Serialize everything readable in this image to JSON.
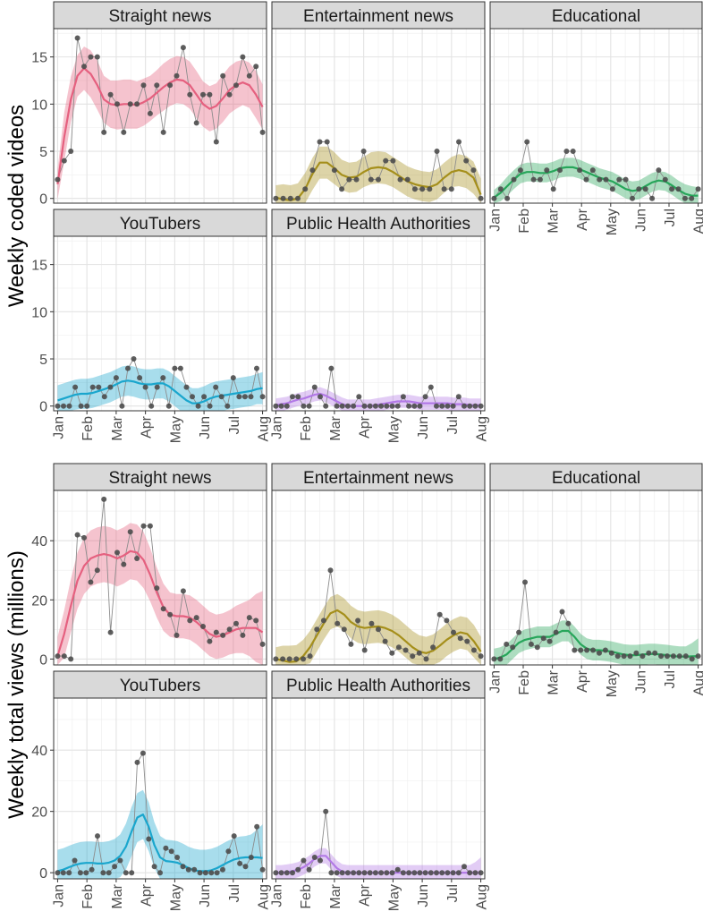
{
  "colors": {
    "Straight news": "#e5607f",
    "Entertainment news": "#a58f1b",
    "Educational": "#27a65a",
    "YouTubers": "#1aa6cd",
    "Public Health Authorities": "#b279e6"
  },
  "chart_data": [
    {
      "type": "line",
      "title": "",
      "ylabel": "Weekly coded videos",
      "xlabel": "",
      "ylim": [
        -0.5,
        18
      ],
      "yticks": [
        0,
        5,
        10,
        15
      ],
      "xtick_labels": [
        "Jan",
        "Feb",
        "Mar",
        "Apr",
        "May",
        "Jun",
        "Jul",
        "Aug"
      ],
      "x_unit": "week index (0 = first week of Jan, 31 = Aug)",
      "xlim": [
        -0.6,
        31.6
      ],
      "series": [
        {
          "name": "Straight news",
          "values": [
            2,
            4,
            5,
            17,
            14,
            15,
            15,
            7,
            11,
            10,
            7,
            10,
            10,
            12,
            9,
            12,
            7,
            12,
            13,
            16,
            11,
            8,
            11,
            11,
            6,
            13,
            11,
            12,
            15,
            13,
            14,
            7
          ],
          "smooth": [
            1.5,
            6.5,
            10.5,
            13.0,
            13.8,
            13.2,
            12.0,
            10.5,
            10.0,
            9.9,
            10.0,
            10.0,
            9.9,
            10.2,
            10.6,
            11.2,
            11.8,
            12.3,
            12.6,
            12.5,
            12.0,
            11.0,
            10.0,
            9.5,
            9.8,
            10.6,
            11.5,
            12.0,
            12.3,
            12.0,
            11.0,
            9.7
          ],
          "band": [
            1.6,
            2.6,
            2.4,
            2.2,
            2.3,
            2.5,
            2.6,
            2.5,
            2.5,
            2.6,
            2.6,
            2.6,
            2.5,
            2.5,
            2.4,
            2.4,
            2.5,
            2.5,
            2.5,
            2.5,
            2.5,
            2.5,
            2.4,
            2.4,
            2.4,
            2.5,
            2.5,
            2.5,
            2.4,
            2.4,
            2.5,
            2.4
          ]
        },
        {
          "name": "Entertainment news",
          "values": [
            0,
            0,
            0,
            0,
            1,
            3,
            6,
            6,
            3,
            1,
            2,
            2,
            5,
            2,
            2,
            4,
            4,
            2,
            2,
            1,
            1,
            1,
            5,
            1,
            1,
            6,
            4,
            3,
            0
          ],
          "smooth": [
            0.1,
            -0.1,
            -0.2,
            0.0,
            1.0,
            2.6,
            3.8,
            3.8,
            3.2,
            2.5,
            2.2,
            2.3,
            2.8,
            3.2,
            3.3,
            3.2,
            2.8,
            2.3,
            1.8,
            1.5,
            1.3,
            1.2,
            1.5,
            2.2,
            2.8,
            3.0,
            2.8,
            2.2,
            0.4
          ],
          "band": [
            1.3,
            1.6,
            1.6,
            1.6,
            1.7,
            1.7,
            1.7,
            1.7,
            1.7,
            1.6,
            1.6,
            1.6,
            1.6,
            1.7,
            1.7,
            1.7,
            1.6,
            1.6,
            1.6,
            1.6,
            1.6,
            1.6,
            1.6,
            1.6,
            1.6,
            1.7,
            1.7,
            1.7,
            1.7
          ]
        },
        {
          "name": "Educational",
          "values": [
            0,
            1,
            0,
            2,
            3,
            6,
            2,
            2,
            3,
            1,
            3,
            5,
            5,
            3,
            2,
            3,
            2,
            2,
            1,
            2,
            2,
            0,
            1,
            1,
            0,
            3,
            2,
            1,
            1,
            0,
            0,
            1
          ],
          "smooth": [
            0.1,
            0.6,
            1.3,
            2.0,
            2.6,
            2.8,
            2.8,
            2.7,
            2.7,
            2.9,
            3.2,
            3.3,
            3.3,
            3.1,
            2.8,
            2.5,
            2.2,
            2.0,
            1.8,
            1.4,
            1.0,
            0.8,
            0.9,
            1.3,
            1.7,
            1.9,
            1.8,
            1.4,
            0.9,
            0.5,
            0.3,
            0.3
          ],
          "band": [
            0.8,
            0.9,
            1.0,
            1.0,
            1.0,
            1.0,
            1.0,
            1.0,
            1.0,
            1.0,
            1.0,
            1.0,
            1.0,
            1.0,
            1.0,
            1.0,
            1.0,
            1.0,
            1.0,
            1.0,
            1.0,
            1.0,
            1.0,
            1.0,
            1.0,
            1.0,
            1.0,
            1.0,
            1.0,
            1.0,
            1.0,
            0.9
          ]
        },
        {
          "name": "YouTubers",
          "values": [
            0,
            0,
            0,
            2,
            0,
            0,
            2,
            2,
            1,
            2,
            3,
            0,
            4,
            5,
            3,
            2,
            0,
            2,
            3,
            0,
            4,
            4,
            2,
            1,
            0,
            1,
            0,
            2,
            1,
            0,
            3,
            1,
            1,
            1,
            4,
            1
          ],
          "smooth": [
            0.6,
            0.8,
            1.0,
            1.2,
            1.3,
            1.3,
            1.4,
            1.6,
            1.8,
            2.0,
            2.3,
            2.6,
            2.7,
            2.6,
            2.4,
            2.3,
            2.3,
            2.4,
            2.4,
            2.1,
            1.6,
            1.1,
            0.6,
            0.3,
            0.3,
            0.5,
            0.8,
            1.0,
            1.1,
            1.2,
            1.3,
            1.4,
            1.5,
            1.6,
            1.8,
            1.9
          ],
          "band": [
            1.6,
            1.6,
            1.6,
            1.6,
            1.6,
            1.6,
            1.6,
            1.6,
            1.6,
            1.6,
            1.6,
            1.6,
            1.6,
            1.6,
            1.6,
            1.6,
            1.6,
            1.6,
            1.6,
            1.6,
            1.6,
            1.6,
            1.6,
            1.6,
            1.6,
            1.6,
            1.6,
            1.6,
            1.6,
            1.6,
            1.6,
            1.6,
            1.6,
            1.6,
            1.6,
            1.7
          ]
        },
        {
          "name": "Public Health Authorities",
          "values": [
            0,
            0,
            0,
            1,
            1,
            0,
            0,
            2,
            1,
            0,
            4,
            0,
            0,
            0,
            0,
            1,
            0,
            0,
            0,
            0,
            0,
            0,
            0,
            1,
            0,
            0,
            0,
            1,
            2,
            0,
            0,
            0,
            0,
            1,
            0,
            0,
            0,
            0
          ],
          "smooth": [
            0.1,
            0.2,
            0.3,
            0.5,
            0.7,
            0.8,
            1.0,
            1.2,
            1.3,
            1.1,
            0.8,
            0.5,
            0.2,
            0.0,
            0.0,
            0.0,
            0.0,
            0.0,
            0.1,
            0.2,
            0.3,
            0.4,
            0.5,
            0.5,
            0.5,
            0.4,
            0.3,
            0.3,
            0.3,
            0.3,
            0.3,
            0.3,
            0.2,
            0.2,
            0.2,
            0.1,
            0.1,
            0.1
          ],
          "band": [
            0.7,
            0.7,
            0.7,
            0.7,
            0.7,
            0.7,
            0.7,
            0.7,
            0.7,
            0.7,
            0.7,
            0.7,
            0.7,
            0.7,
            0.7,
            0.7,
            0.7,
            0.7,
            0.7,
            0.7,
            0.7,
            0.7,
            0.7,
            0.7,
            0.7,
            0.7,
            0.7,
            0.7,
            0.7,
            0.7,
            0.7,
            0.7,
            0.7,
            0.7,
            0.7,
            0.7,
            0.7,
            0.7
          ]
        }
      ]
    },
    {
      "type": "line",
      "title": "",
      "ylabel": "Weekly total views (millions)",
      "xlabel": "",
      "ylim": [
        -2,
        57
      ],
      "yticks": [
        0,
        20,
        40
      ],
      "xtick_labels": [
        "Jan",
        "Feb",
        "Mar",
        "Apr",
        "May",
        "Jun",
        "Jul",
        "Aug"
      ],
      "x_unit": "week index (0 = first week of Jan, 31 = Aug)",
      "xlim": [
        -0.6,
        31.6
      ],
      "series": [
        {
          "name": "Straight news",
          "values": [
            1,
            1,
            0,
            42,
            41,
            26,
            30,
            54,
            9,
            36,
            32,
            43,
            34,
            45,
            45,
            24,
            17,
            15,
            8,
            23,
            13,
            14,
            11,
            6,
            9,
            8,
            10,
            12,
            8,
            14,
            13,
            5
          ],
          "smooth": [
            1.0,
            8.5,
            18.0,
            26.5,
            31.5,
            34.0,
            35.0,
            35.5,
            35.0,
            34.0,
            35.0,
            36.5,
            36.0,
            33.5,
            28.5,
            22.5,
            17.5,
            15.0,
            14.5,
            14.5,
            14.0,
            12.5,
            10.5,
            8.5,
            7.5,
            8.0,
            9.0,
            10.0,
            10.5,
            10.5,
            10.5,
            9.0
          ],
          "band": [
            6.5,
            8.0,
            9.0,
            9.5,
            9.5,
            9.5,
            9.5,
            9.5,
            9.5,
            9.5,
            9.5,
            9.5,
            9.5,
            9.5,
            9.0,
            8.5,
            8.0,
            7.5,
            7.5,
            7.5,
            7.5,
            7.5,
            7.5,
            7.5,
            7.5,
            7.5,
            7.5,
            8.0,
            8.5,
            9.5,
            11.5,
            14.0
          ]
        },
        {
          "name": "Entertainment news",
          "values": [
            0,
            0,
            0,
            0,
            0,
            1,
            10,
            13,
            30,
            12,
            10,
            5,
            13,
            3,
            12,
            10,
            6,
            2,
            4,
            3,
            1,
            2,
            0,
            4,
            15,
            13,
            9,
            7,
            6,
            3,
            1
          ],
          "smooth": [
            0.0,
            -0.5,
            -1.0,
            -0.8,
            1.0,
            4.0,
            8.0,
            12.0,
            15.5,
            16.5,
            15.0,
            12.5,
            11.0,
            10.5,
            10.8,
            11.0,
            10.5,
            9.5,
            8.0,
            6.0,
            4.0,
            2.5,
            2.0,
            2.8,
            4.5,
            6.5,
            8.0,
            9.0,
            8.5,
            6.0,
            2.5
          ],
          "band": [
            4.0,
            5.0,
            5.5,
            5.5,
            5.5,
            5.5,
            5.5,
            5.5,
            5.5,
            5.5,
            5.5,
            5.5,
            5.5,
            5.5,
            5.5,
            5.5,
            5.5,
            5.5,
            5.5,
            5.5,
            5.5,
            5.5,
            5.5,
            5.5,
            5.5,
            5.5,
            5.5,
            5.5,
            5.5,
            5.5,
            5.0
          ]
        },
        {
          "name": "Educational",
          "values": [
            0,
            0,
            5,
            4,
            9,
            26,
            5,
            4,
            7,
            6,
            9,
            16,
            12,
            3,
            3,
            3,
            3,
            2,
            3,
            2,
            1,
            1,
            1,
            2,
            1,
            2,
            2,
            1,
            1,
            1,
            1,
            1,
            0,
            1
          ],
          "smooth": [
            0.0,
            0.5,
            1.5,
            3.5,
            5.5,
            6.5,
            7.0,
            7.5,
            7.5,
            7.5,
            8.5,
            9.5,
            9.5,
            7.5,
            5.0,
            3.5,
            3.0,
            3.0,
            2.8,
            2.5,
            2.0,
            1.5,
            1.3,
            1.3,
            1.5,
            1.7,
            1.7,
            1.5,
            1.3,
            1.0,
            0.8,
            0.8,
            0.9,
            1.0
          ],
          "band": [
            3.5,
            3.5,
            3.5,
            3.5,
            3.5,
            3.5,
            3.5,
            3.5,
            3.5,
            3.5,
            3.5,
            3.5,
            3.5,
            3.5,
            3.5,
            3.5,
            3.5,
            3.5,
            3.5,
            3.5,
            3.5,
            3.5,
            3.5,
            3.5,
            3.5,
            3.5,
            3.5,
            3.5,
            3.5,
            3.5,
            3.5,
            3.5,
            4.5,
            6.0
          ]
        },
        {
          "name": "YouTubers",
          "values": [
            0,
            0,
            0,
            4,
            0,
            0,
            1,
            12,
            0,
            0,
            2,
            4,
            0,
            0,
            36,
            39,
            11,
            2,
            0,
            8,
            7,
            5,
            2,
            1,
            1,
            0,
            0,
            0,
            0,
            1,
            7,
            12,
            3,
            2,
            5,
            15,
            1
          ],
          "smooth": [
            0.5,
            1.0,
            1.8,
            2.5,
            3.0,
            3.2,
            3.2,
            3.0,
            3.0,
            3.3,
            4.0,
            5.5,
            8.5,
            13.5,
            18.0,
            19.0,
            15.0,
            9.0,
            5.0,
            3.8,
            3.6,
            3.3,
            2.5,
            1.5,
            0.8,
            0.5,
            0.5,
            0.8,
            1.5,
            2.5,
            3.5,
            4.3,
            4.8,
            5.0,
            5.0,
            5.0,
            4.8
          ],
          "band": [
            7.0,
            7.0,
            7.0,
            7.0,
            7.0,
            7.0,
            7.0,
            7.0,
            7.0,
            7.0,
            7.0,
            7.0,
            7.5,
            8.0,
            8.0,
            8.0,
            8.0,
            7.5,
            7.0,
            7.0,
            7.0,
            7.0,
            7.0,
            7.0,
            7.0,
            7.0,
            7.0,
            7.0,
            7.0,
            7.0,
            7.0,
            7.0,
            7.0,
            7.0,
            7.5,
            9.0,
            11.0
          ]
        },
        {
          "name": "Public Health Authorities",
          "values": [
            0,
            0,
            0,
            0,
            1,
            4,
            1,
            5,
            4,
            20,
            0,
            0,
            0,
            0,
            0,
            0,
            0,
            0,
            0,
            0,
            0,
            0,
            1,
            0,
            0,
            0,
            0,
            0,
            0,
            0,
            0,
            0,
            0,
            0,
            2,
            0,
            0,
            0
          ],
          "smooth": [
            0.0,
            0.0,
            0.2,
            0.5,
            1.0,
            1.8,
            3.0,
            4.5,
            5.5,
            5.5,
            3.5,
            1.5,
            0.3,
            0.0,
            0.0,
            0.0,
            0.0,
            0.0,
            0.0,
            0.0,
            0.0,
            0.0,
            0.0,
            0.0,
            0.0,
            0.0,
            0.0,
            0.0,
            0.0,
            0.0,
            0.0,
            0.0,
            0.0,
            0.0,
            0.0,
            0.0,
            0.0,
            0.0
          ],
          "band": [
            2.5,
            2.5,
            2.5,
            2.5,
            2.5,
            2.5,
            2.5,
            2.5,
            2.5,
            2.5,
            2.5,
            2.5,
            2.5,
            2.5,
            2.5,
            2.5,
            2.5,
            2.5,
            2.5,
            2.5,
            2.5,
            2.5,
            2.5,
            2.5,
            2.5,
            2.5,
            2.5,
            2.5,
            2.5,
            2.5,
            2.5,
            2.5,
            2.5,
            2.5,
            2.5,
            2.5,
            3.5,
            5.0
          ]
        }
      ]
    }
  ]
}
